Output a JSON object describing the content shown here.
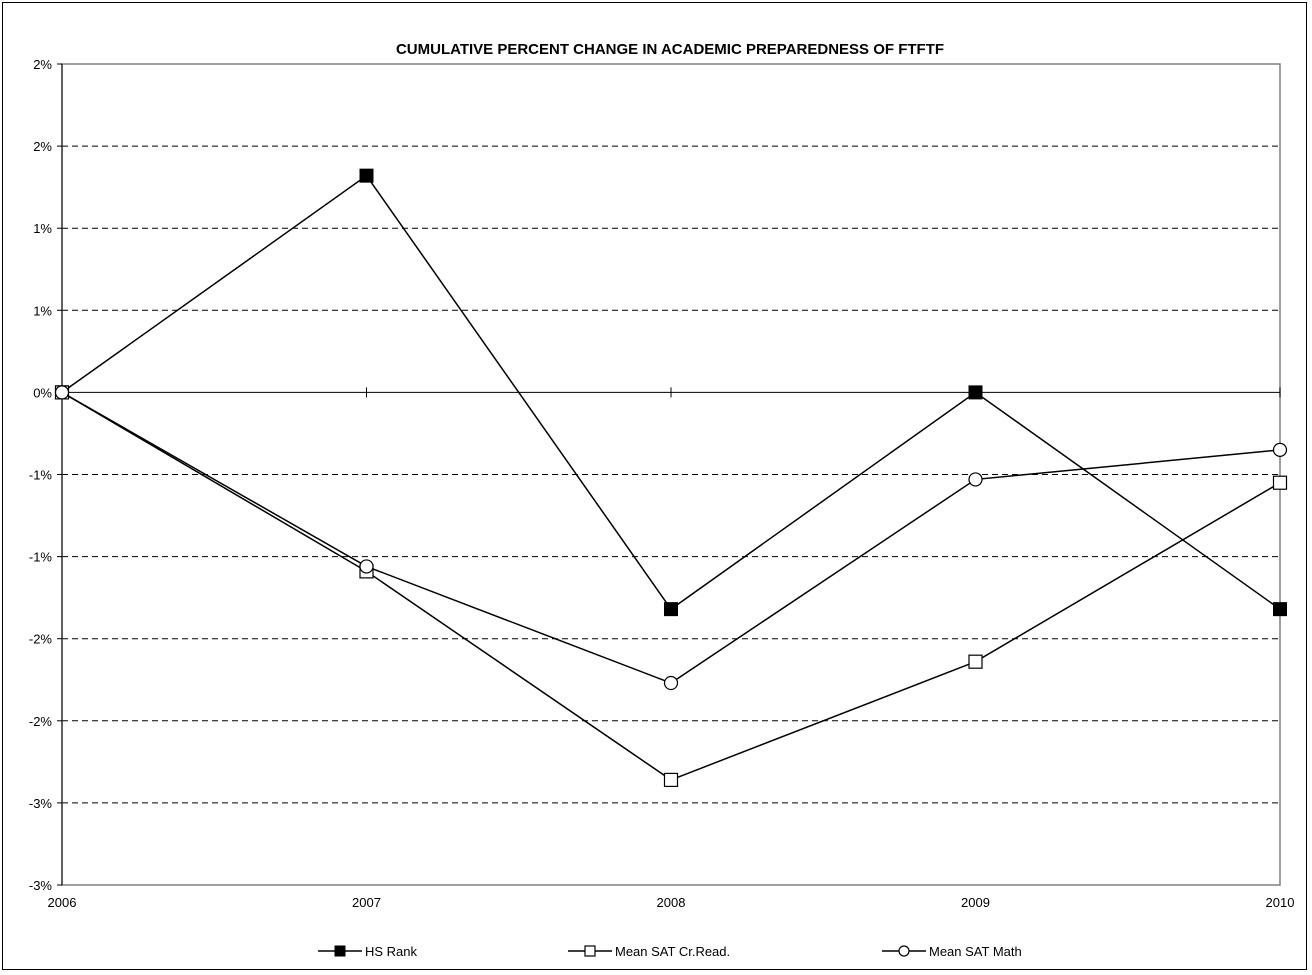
{
  "chart_data": {
    "type": "line",
    "title": "CUMULATIVE PERCENT CHANGE IN ACADEMIC PREPAREDNESS OF FTFTF",
    "xlabel": "",
    "ylabel": "",
    "categories": [
      "2006",
      "2007",
      "2008",
      "2009",
      "2010"
    ],
    "ylim": [
      -3.0,
      2.0
    ],
    "y_ticks": [
      2.0,
      1.5,
      1.0,
      0.5,
      0.0,
      -0.5,
      -1.0,
      -1.5,
      -2.0,
      -2.5,
      -3.0
    ],
    "y_tick_labels": [
      "2%",
      "2%",
      "1%",
      "1%",
      "0%",
      "-1%",
      "-1%",
      "-2%",
      "-2%",
      "-3%",
      "-3%"
    ],
    "grid": "horizontal-dashed",
    "legend_position": "bottom",
    "series": [
      {
        "name": "HS Rank",
        "marker": "filled-square",
        "values": [
          0.0,
          1.32,
          -1.32,
          0.0,
          -1.32
        ]
      },
      {
        "name": "Mean SAT Cr.Read.",
        "marker": "open-square",
        "values": [
          0.0,
          -1.09,
          -2.36,
          -1.64,
          -0.55
        ]
      },
      {
        "name": "Mean SAT Math",
        "marker": "open-circle",
        "values": [
          0.0,
          -1.06,
          -1.77,
          -0.53,
          -0.35
        ]
      }
    ]
  }
}
